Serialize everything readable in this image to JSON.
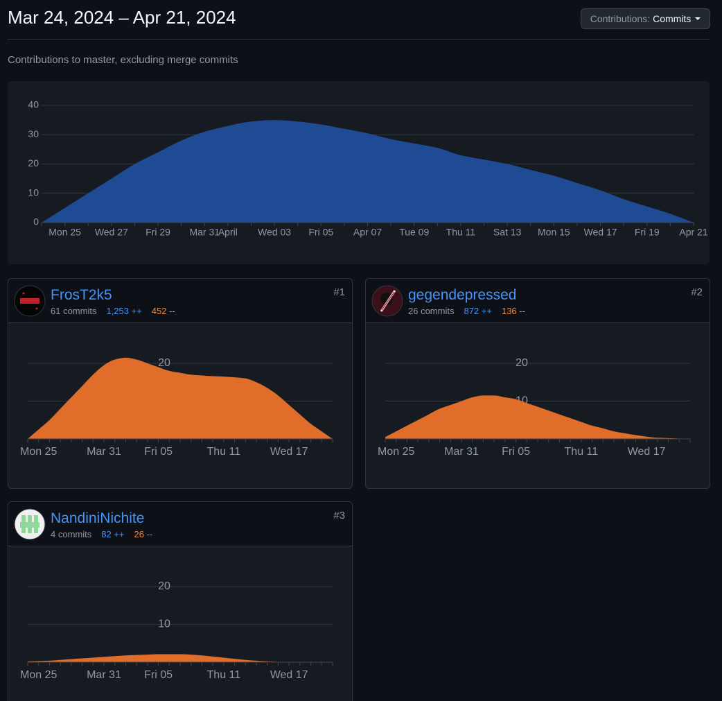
{
  "header": {
    "title": "Mar 24, 2024 – Apr 21, 2024",
    "button_label": "Contributions:",
    "button_value": "Commits"
  },
  "subtitle": "Contributions to master, excluding merge commits",
  "contributors": [
    {
      "name": "FrosT2k5",
      "rank": "#1",
      "commits": "61 commits",
      "additions": "1,253 ++",
      "deletions": "452 --"
    },
    {
      "name": "gegendepressed",
      "rank": "#2",
      "commits": "26 commits",
      "additions": "872 ++",
      "deletions": "136 --"
    },
    {
      "name": "NandiniNichite",
      "rank": "#3",
      "commits": "4 commits",
      "additions": "82 ++",
      "deletions": "26 --"
    }
  ],
  "chart_data": [
    {
      "type": "area",
      "color": "#1f4a94",
      "ylim": [
        0,
        40
      ],
      "yticks": [
        0,
        10,
        20,
        30,
        40
      ],
      "grid": true,
      "categories": [
        null,
        "Mon 25",
        null,
        "Wed 27",
        null,
        "Fri 29",
        null,
        "Mar 31",
        "April",
        null,
        "Wed 03",
        null,
        "Fri 05",
        null,
        "Apr 07",
        null,
        "Tue 09",
        null,
        "Thu 11",
        null,
        "Sat 13",
        null,
        "Mon 15",
        null,
        "Wed 17",
        null,
        "Fri 19",
        null,
        "Apr 21"
      ],
      "values": [
        0,
        5,
        10,
        15,
        20,
        24,
        28,
        31,
        33,
        34.5,
        35,
        34.5,
        33.5,
        32,
        30.5,
        28.5,
        27,
        25.5,
        23,
        21.5,
        20,
        18,
        16,
        13.5,
        11,
        8,
        5.5,
        3,
        0
      ]
    },
    {
      "type": "area",
      "color": "#e06d2a",
      "ylim": [
        0,
        30
      ],
      "yticks": [
        10,
        20
      ],
      "grid": true,
      "categories": [
        null,
        "Mon 25",
        null,
        null,
        null,
        null,
        null,
        "Mar 31",
        null,
        null,
        null,
        null,
        "Fri 05",
        null,
        null,
        null,
        null,
        null,
        "Thu 11",
        null,
        null,
        null,
        null,
        null,
        "Wed 17",
        null,
        null,
        null,
        null
      ],
      "values": [
        0,
        2.5,
        5,
        8,
        11,
        14,
        17,
        19.5,
        21,
        21.5,
        21,
        20,
        19,
        18,
        17.5,
        17,
        16.8,
        16.6,
        16.5,
        16.3,
        16,
        15,
        13.5,
        11.5,
        9,
        6.5,
        4,
        2,
        0
      ]
    },
    {
      "type": "area",
      "color": "#e06d2a",
      "ylim": [
        0,
        30
      ],
      "yticks": [
        10,
        20
      ],
      "grid": true,
      "categories": [
        null,
        "Mon 25",
        null,
        null,
        null,
        null,
        null,
        "Mar 31",
        null,
        null,
        null,
        null,
        "Fri 05",
        null,
        null,
        null,
        null,
        null,
        "Thu 11",
        null,
        null,
        null,
        null,
        null,
        "Wed 17",
        null,
        null,
        null,
        null
      ],
      "values": [
        0.5,
        2,
        3.5,
        5,
        6.5,
        8,
        9,
        10,
        11,
        11.5,
        11.5,
        11,
        10.5,
        9.5,
        8.5,
        7.5,
        6.5,
        5.5,
        4.5,
        3.5,
        2.8,
        2,
        1.5,
        1,
        0.6,
        0.3,
        0.2,
        0.1,
        0
      ]
    },
    {
      "type": "area",
      "color": "#e06d2a",
      "ylim": [
        0,
        30
      ],
      "yticks": [
        10,
        20
      ],
      "grid": true,
      "categories": [
        null,
        "Mon 25",
        null,
        null,
        null,
        null,
        null,
        "Mar 31",
        null,
        null,
        null,
        null,
        "Fri 05",
        null,
        null,
        null,
        null,
        null,
        "Thu 11",
        null,
        null,
        null,
        null,
        null,
        "Wed 17",
        null,
        null,
        null,
        null
      ],
      "values": [
        0.2,
        0.3,
        0.4,
        0.6,
        0.8,
        1,
        1.2,
        1.4,
        1.6,
        1.8,
        1.9,
        2,
        2.1,
        2.1,
        2.1,
        2,
        1.8,
        1.5,
        1.2,
        0.9,
        0.6,
        0.4,
        0.2,
        0.1,
        0.1,
        0,
        0,
        0,
        0
      ]
    }
  ]
}
